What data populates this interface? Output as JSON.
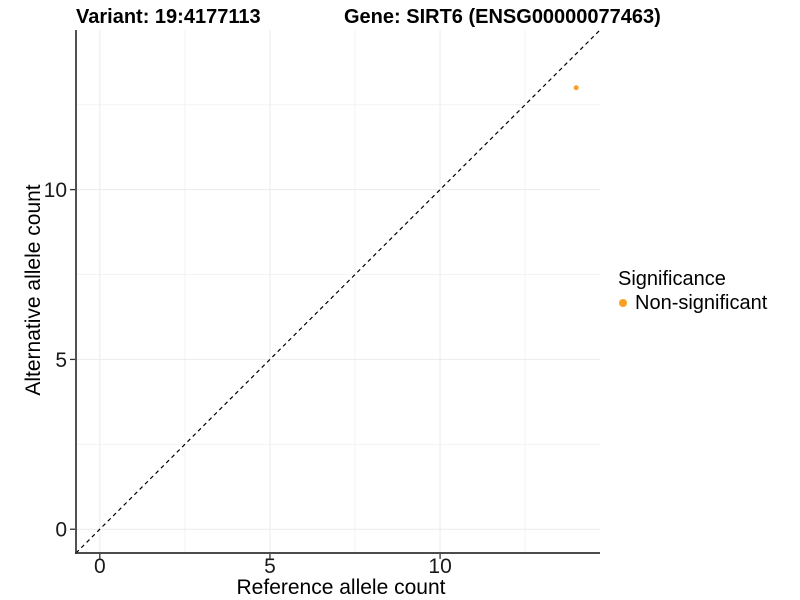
{
  "figure": {
    "titles": {
      "variant": "Variant: 19:4177113",
      "gene": "Gene: SIRT6 (ENSG00000077463)"
    },
    "legend": {
      "title": "Significance",
      "items": [
        {
          "label": "Non-significant",
          "color": "#F9A025",
          "marker": "circle-icon"
        }
      ]
    },
    "colors": {
      "background": "#FFFFFF",
      "axis_line": "#333333",
      "tick_mark": "#333333",
      "tick_text": "#1A1A1A",
      "grid_major": "#EBEBEB",
      "grid_minor": "#F3F3F3",
      "identity_line": "#000000"
    }
  },
  "chart_data": {
    "type": "scatter",
    "title": "Variant: 19:4177113    Gene: SIRT6 (ENSG00000077463)",
    "xlabel": "Reference allele count",
    "ylabel": "Alternative allele count",
    "xlim": [
      -0.7,
      14.7
    ],
    "ylim": [
      -0.7,
      14.7
    ],
    "x_ticks": [
      0,
      5,
      10
    ],
    "y_ticks": [
      0,
      5,
      10
    ],
    "x_minor_ticks": [
      2.5,
      7.5,
      12.5
    ],
    "y_minor_ticks": [
      2.5,
      7.5,
      12.5
    ],
    "grid": "major+minor",
    "legend_position": "right",
    "series": [
      {
        "name": "Non-significant",
        "color": "#F9A025",
        "marker_radius": 2.5,
        "points": [
          {
            "x": 14,
            "y": 13
          }
        ]
      }
    ],
    "reference_line": {
      "kind": "identity",
      "style": "dashed",
      "color": "#000000"
    }
  }
}
